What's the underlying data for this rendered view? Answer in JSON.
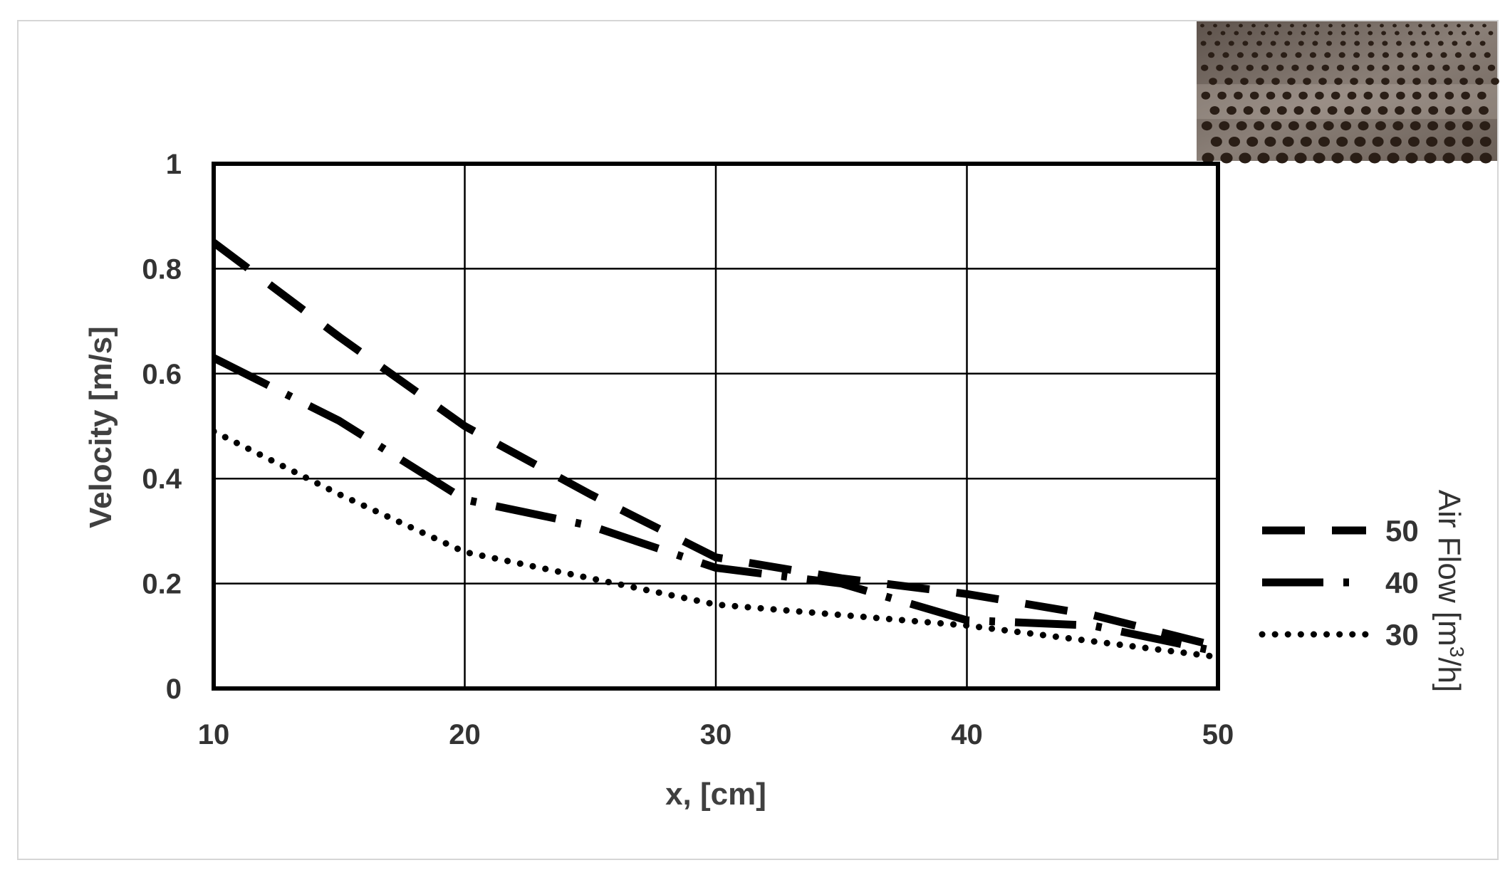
{
  "chart_data": {
    "type": "line",
    "xlabel": "x, [cm]",
    "ylabel": "Velocity [m/s]",
    "xlim": [
      10,
      50
    ],
    "ylim": [
      0,
      1
    ],
    "x_ticks": [
      "10",
      "20",
      "30",
      "40",
      "50"
    ],
    "y_ticks": [
      "0",
      "0.2",
      "0.4",
      "0.6",
      "0.8",
      "1"
    ],
    "grid": true,
    "legend_title": "Air Flow [m³/h]",
    "legend_title_parts": {
      "main": "Air Flow  [m",
      "sup": "3",
      "tail": "/h]"
    },
    "legend_placement": "right",
    "series": [
      {
        "name": "50",
        "style": "dashed",
        "x": [
          10,
          15,
          20,
          25,
          30,
          35,
          40,
          45,
          50
        ],
        "y": [
          0.85,
          0.67,
          0.5,
          0.37,
          0.25,
          0.21,
          0.18,
          0.14,
          0.08
        ]
      },
      {
        "name": "40",
        "style": "dash-dot",
        "x": [
          10,
          15,
          20,
          25,
          30,
          35,
          40,
          45,
          50
        ],
        "y": [
          0.63,
          0.51,
          0.36,
          0.31,
          0.23,
          0.2,
          0.13,
          0.12,
          0.07
        ]
      },
      {
        "name": "30",
        "style": "dotted",
        "x": [
          10,
          15,
          20,
          25,
          30,
          35,
          40,
          45,
          50
        ],
        "y": [
          0.49,
          0.37,
          0.26,
          0.21,
          0.16,
          0.14,
          0.12,
          0.09,
          0.06
        ]
      }
    ]
  },
  "inset_photo": {
    "icon": "perforated-plate-photo",
    "base_color": "#7a6e66",
    "hole_color": "#2a1e16",
    "highlight_color": "#b8aca2"
  }
}
